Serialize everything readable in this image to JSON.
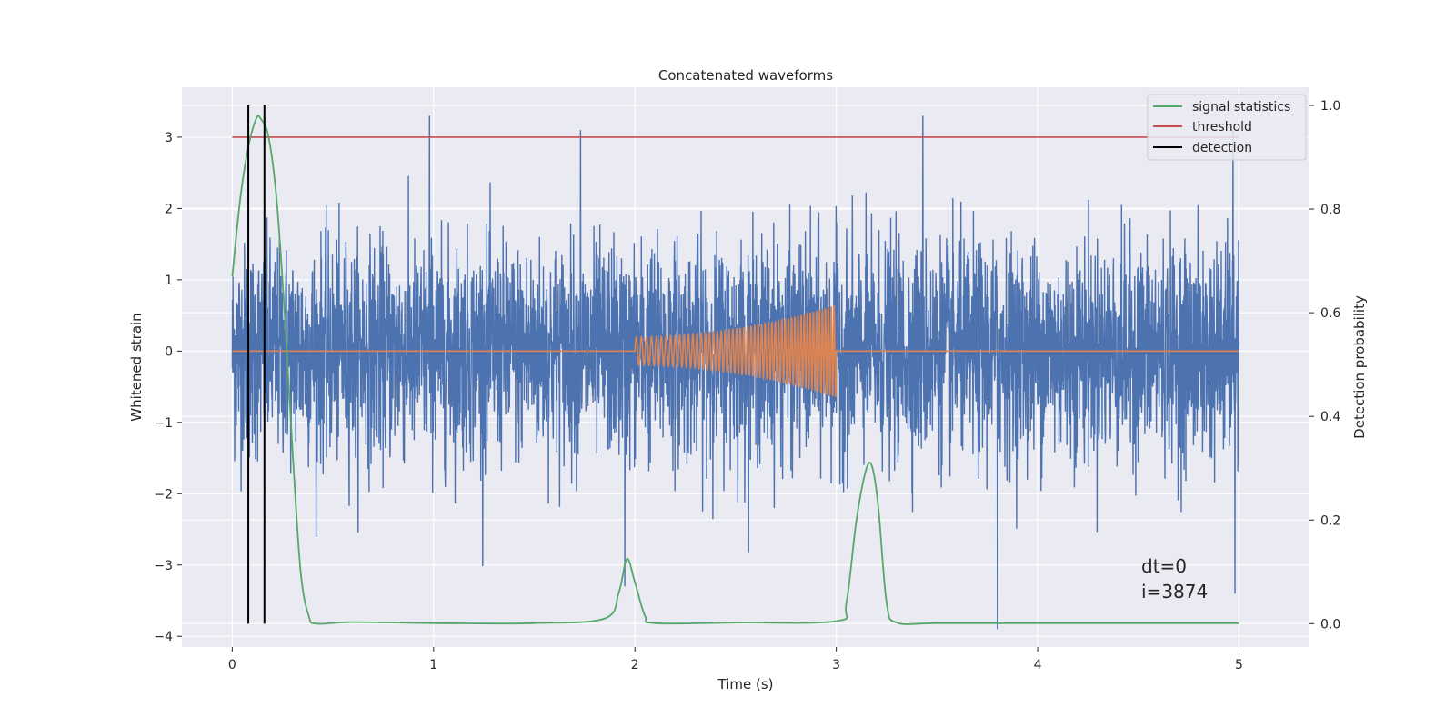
{
  "chart_data": {
    "type": "line",
    "title": "Concatenated waveforms",
    "xlabel": "Time (s)",
    "ylabel": "Whitened strain",
    "ylabel_right": "Detection probability",
    "xlim": [
      -0.25,
      5.35
    ],
    "ylim": [
      -4.15,
      3.7
    ],
    "ylim_right": [
      -0.045,
      1.035
    ],
    "xticks": [
      0,
      1,
      2,
      3,
      4,
      5
    ],
    "yticks": [
      -4,
      -3,
      -2,
      -1,
      0,
      1,
      2,
      3
    ],
    "yticks_right": [
      0.0,
      0.2,
      0.4,
      0.6,
      0.8,
      1.0
    ],
    "ytick_labels": [
      "−4",
      "−3",
      "−2",
      "−1",
      "0",
      "1",
      "2",
      "3"
    ],
    "ytick_right_labels": [
      "0.0",
      "0.2",
      "0.4",
      "0.6",
      "0.8",
      "1.0"
    ],
    "grid": true,
    "legend_position": "top-right",
    "legend": [
      "signal statistics",
      "threshold",
      "detection"
    ],
    "colors": {
      "strain": "#4c72b0",
      "template": "#dd8452",
      "signal_statistics": "#55a868",
      "threshold": "#c44e52",
      "detection": "#000000",
      "background": "#eaeaf2",
      "grid": "#ffffff"
    },
    "series": [
      {
        "description_only": false,
        "key": "strain",
        "axis": "left",
        "x_range": [
          0,
          5
        ],
        "amplitude_std": 0.75,
        "notable_peaks": [
          [
            0.98,
            3.3
          ],
          [
            1.73,
            3.1
          ],
          [
            3.43,
            3.3
          ],
          [
            4.97,
            3.1
          ],
          [
            1.95,
            -3.3
          ],
          [
            3.8,
            -3.9
          ],
          [
            4.98,
            -3.4
          ]
        ]
      },
      {
        "key": "template",
        "axis": "left",
        "flat_value": 0,
        "chirp_x_range": [
          2.0,
          3.0
        ],
        "chirp_amp_start": 0.2,
        "chirp_amp_end": 0.65
      },
      {
        "key": "signal_statistics",
        "name": "signal statistics",
        "axis": "right",
        "x": [
          0.0,
          0.04,
          0.08,
          0.12,
          0.14,
          0.18,
          0.22,
          0.26,
          0.3,
          0.34,
          0.38,
          0.42,
          0.6,
          1.0,
          1.5,
          1.85,
          1.92,
          1.96,
          2.0,
          2.05,
          2.1,
          2.5,
          3.0,
          3.05,
          3.1,
          3.15,
          3.18,
          3.21,
          3.25,
          3.3,
          3.5,
          4.0,
          4.5,
          5.0
        ],
        "y": [
          0.67,
          0.82,
          0.92,
          0.975,
          0.975,
          0.94,
          0.82,
          0.6,
          0.33,
          0.1,
          0.015,
          0.0,
          0.003,
          0.001,
          0.001,
          0.01,
          0.06,
          0.125,
          0.08,
          0.015,
          0.001,
          0.002,
          0.005,
          0.04,
          0.2,
          0.3,
          0.3,
          0.22,
          0.04,
          0.002,
          0.001,
          0.001,
          0.001,
          0.001
        ]
      },
      {
        "key": "threshold",
        "name": "threshold",
        "axis": "left",
        "x": [
          0,
          5
        ],
        "y": [
          3,
          3
        ]
      },
      {
        "key": "detection",
        "name": "detection",
        "axis": "right",
        "x_positions": [
          0.08,
          0.16
        ],
        "y_range": [
          0.0,
          1.0
        ]
      }
    ],
    "annotations": [
      "dt=0",
      "i=3874"
    ]
  }
}
